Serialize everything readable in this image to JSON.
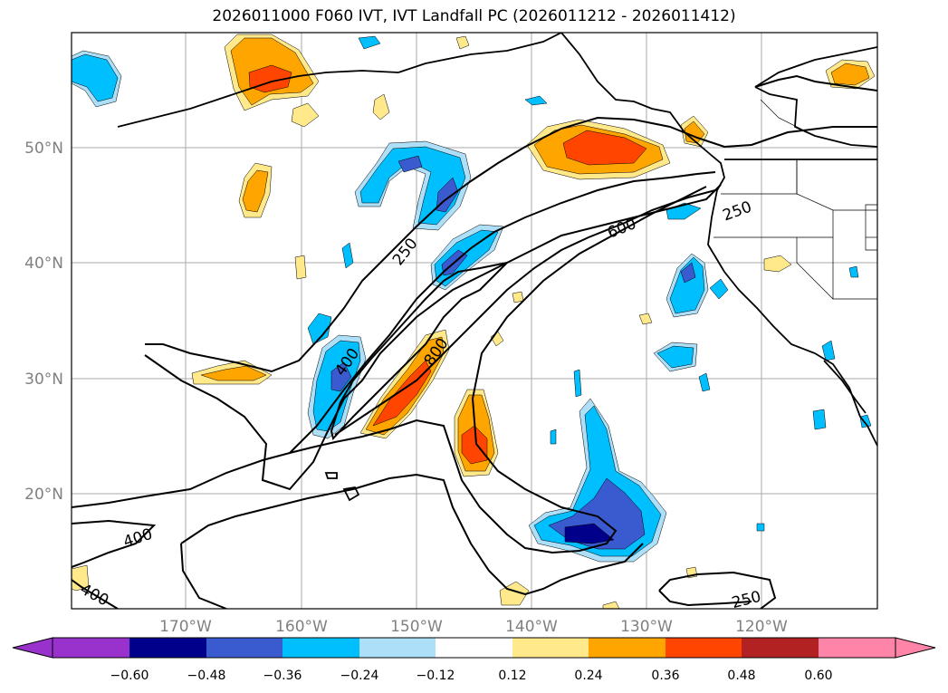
{
  "title": "2026011000 F060 IVT, IVT Landfall PC (2026011212 - 2026011412)",
  "map": {
    "lat_labels": [
      "50°N",
      "40°N",
      "30°N",
      "20°N"
    ],
    "lon_labels": [
      "170°W",
      "160°W",
      "150°W",
      "140°W",
      "130°W",
      "120°W"
    ],
    "contour_labels": [
      "250",
      "400",
      "800",
      "600",
      "250",
      "400",
      "400",
      "250"
    ]
  },
  "colorbar": {
    "ticks": [
      "−0.60",
      "−0.48",
      "−0.36",
      "−0.24",
      "−0.12",
      "0.12",
      "0.24",
      "0.36",
      "0.48",
      "0.60"
    ],
    "colors": [
      "#9932CC",
      "#00008B",
      "#3A5BCF",
      "#00BFFF",
      "#ADE0F8",
      "#FFFFFF",
      "#FFE98A",
      "#FFA500",
      "#FF4500",
      "#B22222",
      "#FF85A8"
    ]
  },
  "fill_colors": {
    "neg_deep": "#00008B",
    "neg_mid": "#3A5BCF",
    "neg": "#00BFFF",
    "neg_light": "#ADE0F8",
    "pos_light": "#FFE98A",
    "pos": "#FFA500",
    "pos_mid": "#FF4500"
  }
}
